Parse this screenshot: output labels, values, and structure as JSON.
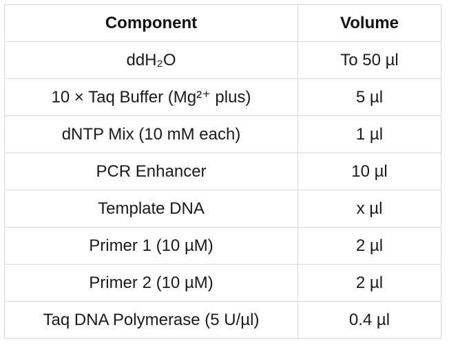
{
  "table": {
    "headers": [
      "Component",
      "Volume"
    ],
    "rows": [
      [
        "ddH₂O",
        "To 50 µl"
      ],
      [
        "10 × Taq Buffer (Mg²⁺ plus)",
        "5 µl"
      ],
      [
        "dNTP Mix (10 mM each)",
        "1 µl"
      ],
      [
        "PCR Enhancer",
        "10 µl"
      ],
      [
        "Template DNA",
        "x µl"
      ],
      [
        "Primer 1 (10 µM)",
        "2 µl"
      ],
      [
        "Primer 2 (10 µM)",
        "2 µl"
      ],
      [
        "Taq DNA Polymerase (5 U/µl)",
        "0.4 µl"
      ]
    ]
  }
}
